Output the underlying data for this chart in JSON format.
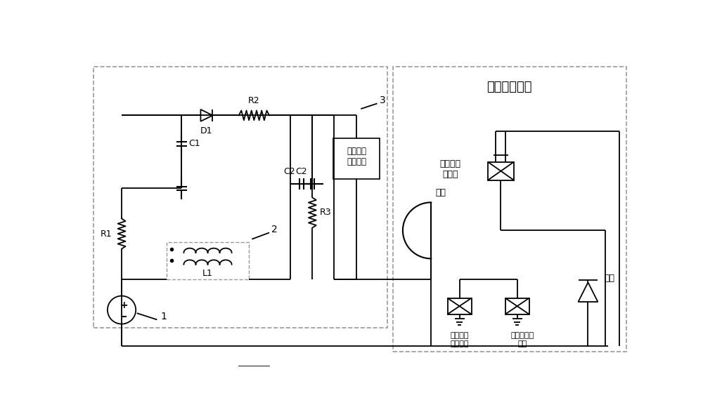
{
  "bg_color": "#ffffff",
  "line_color": "#000000",
  "dash_color": "#999999",
  "fig_width": 10.0,
  "fig_height": 5.87,
  "labels": {
    "hall_thruster": "霍尔电推力器",
    "satellite_device": "星载遥感\n测量装置",
    "outer_coil": "外线圈励\n磁电源",
    "anode": "阳极",
    "cathode": "阴极",
    "additional_coil": "附加线圈\n励磁电源",
    "inner_coil": "内线圈励磁\n电源",
    "D1": "D1",
    "R1": "R1",
    "R2": "R2",
    "R3": "R3",
    "C1": "C1",
    "C2": "C2",
    "L1": "L1",
    "label1": "1",
    "label2": "2",
    "label3": "3",
    "plus": "+",
    "minus": "–"
  }
}
